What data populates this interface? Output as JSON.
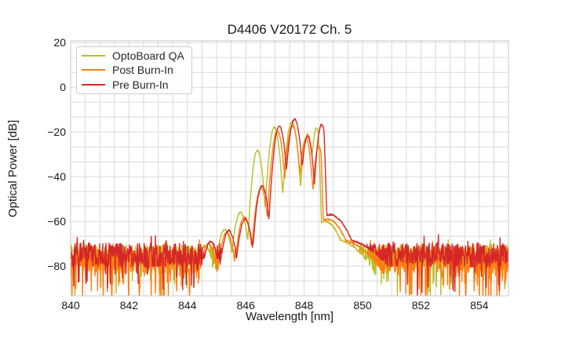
{
  "figure": {
    "title": "D4406 V20172 Ch. 5",
    "xlabel": "Wavelength [nm]",
    "ylabel": "Optical Power [dB]"
  },
  "legend": {
    "position": "upper left",
    "items": [
      {
        "label": "OptoBoard QA",
        "color": "#bcbd22"
      },
      {
        "label": "Post Burn-In",
        "color": "#ff7f0e"
      },
      {
        "label": "Pre Burn-In",
        "color": "#d62728"
      }
    ]
  },
  "chart_data": {
    "type": "line",
    "title": "D4406 V20172 Ch. 5",
    "xlabel": "Wavelength [nm]",
    "ylabel": "Optical Power [dB]",
    "xlim": [
      840,
      855
    ],
    "ylim": [
      -93.3,
      20.8
    ],
    "x_ticks": [
      840,
      842,
      844,
      846,
      848,
      850,
      852,
      854
    ],
    "x_minor_step_nm": 0.5,
    "y_ticks": [
      20,
      0,
      -20,
      -40,
      -60,
      -80
    ],
    "y_tick_labels": [
      "20",
      "0",
      "−20",
      "−40",
      "−60",
      "−80"
    ],
    "y_minor_step_db": 6.6667,
    "grid": "both",
    "grid_color": "#d9d9d9",
    "spine_color": "#c8c8c8",
    "text_color": "#1a1a1a",
    "sample_step_nm": 0.012,
    "mode_spacing_nm": 0.55,
    "signal_band_nm": [
      844.6,
      849.3
    ],
    "series": [
      {
        "name": "OptoBoard QA",
        "color": "#bcbd22",
        "seed": 101,
        "peak_nm": 847.58,
        "peak_db": -15.5,
        "noise_floor_db": {
          "mean": -75.5,
          "spread": 5.2,
          "deep_dip_prob": 0.1,
          "deep_dip_max": 17,
          "spike_prob": 0.05,
          "spike_max": 4
        },
        "modes": [
          [
            844.62,
            -71,
            0.08
          ],
          [
            845.28,
            -63.5,
            0.075
          ],
          [
            845.82,
            -56,
            0.07
          ],
          [
            846.4,
            -28.2,
            0.052
          ],
          [
            846.98,
            -17.8,
            0.052
          ],
          [
            847.58,
            -15.5,
            0.055
          ],
          [
            848.12,
            -21.0,
            0.05
          ],
          [
            848.42,
            -18.4,
            0.042
          ]
        ],
        "tail_modes": [
          [
            848.72,
            -60,
            0.18
          ],
          [
            849.05,
            -68,
            0.35
          ]
        ],
        "right_cutoff": {
          "start": 848.5,
          "slope_db_per_nm": 280
        }
      },
      {
        "name": "Post Burn-In",
        "color": "#ff7f0e",
        "seed": 202,
        "peak_nm": 847.6,
        "peak_db": -17.2,
        "noise_floor_db": {
          "mean": -77.0,
          "spread": 6.0,
          "deep_dip_prob": 0.2,
          "deep_dip_max": 18,
          "spike_prob": 0.05,
          "spike_max": 5
        },
        "modes": [
          [
            844.72,
            -70,
            0.08
          ],
          [
            845.35,
            -65,
            0.075
          ],
          [
            845.95,
            -58,
            0.07
          ],
          [
            846.52,
            -45,
            0.06
          ],
          [
            847.08,
            -19.5,
            0.055
          ],
          [
            847.6,
            -17.2,
            0.055
          ],
          [
            848.06,
            -23.0,
            0.05
          ],
          [
            848.5,
            -26.5,
            0.045
          ]
        ],
        "tail_modes": [
          [
            848.8,
            -59,
            0.2
          ],
          [
            849.15,
            -68,
            0.4
          ]
        ],
        "right_cutoff": {
          "start": 848.58,
          "slope_db_per_nm": 280
        }
      },
      {
        "name": "Pre Burn-In",
        "color": "#d62728",
        "seed": 303,
        "peak_nm": 847.67,
        "peak_db": -14.3,
        "noise_floor_db": {
          "mean": -75.0,
          "spread": 5.4,
          "deep_dip_prob": 0.1,
          "deep_dip_max": 17,
          "spike_prob": 0.06,
          "spike_max": 4
        },
        "modes": [
          [
            844.8,
            -69,
            0.08
          ],
          [
            845.42,
            -64,
            0.075
          ],
          [
            845.98,
            -59,
            0.07
          ],
          [
            846.56,
            -44,
            0.06
          ],
          [
            847.15,
            -17.3,
            0.055
          ],
          [
            847.67,
            -14.3,
            0.058
          ],
          [
            848.12,
            -22.0,
            0.05
          ],
          [
            848.6,
            -16.6,
            0.048
          ]
        ],
        "tail_modes": [
          [
            848.88,
            -57,
            0.22
          ],
          [
            849.3,
            -68,
            0.45
          ]
        ],
        "right_cutoff": {
          "start": 848.68,
          "slope_db_per_nm": 280
        }
      }
    ]
  }
}
